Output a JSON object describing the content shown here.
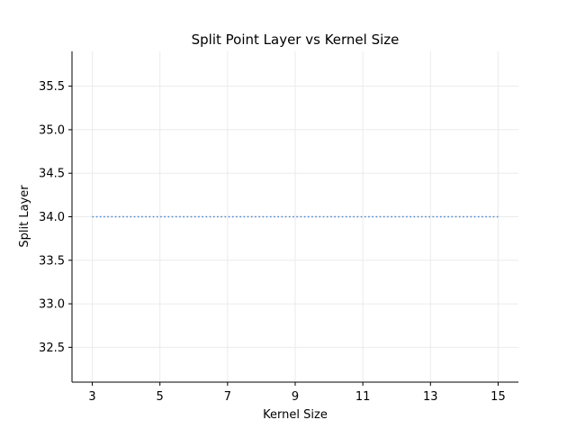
{
  "chart_data": {
    "type": "line",
    "title": "Split Point Layer vs Kernel Size",
    "xlabel": "Kernel Size",
    "ylabel": "Split Layer",
    "x": [
      3,
      5,
      7,
      9,
      11,
      13,
      15
    ],
    "series": [
      {
        "values": [
          34,
          34,
          34,
          34,
          34,
          34,
          34
        ],
        "color": "#4c88d4",
        "line_style": "dotted"
      }
    ],
    "xticks": [
      3,
      5,
      7,
      9,
      11,
      13,
      15
    ],
    "xtick_labels": [
      "3",
      "5",
      "7",
      "9",
      "11",
      "13",
      "15"
    ],
    "yticks": [
      32.5,
      33.0,
      33.5,
      34.0,
      34.5,
      35.0,
      35.5
    ],
    "ytick_labels": [
      "32.5",
      "33.0",
      "33.5",
      "34.0",
      "34.5",
      "35.0",
      "35.5"
    ],
    "xlim": [
      2.4,
      15.6
    ],
    "ylim": [
      32.1,
      35.9
    ],
    "grid": true,
    "spines": "left-bottom"
  }
}
